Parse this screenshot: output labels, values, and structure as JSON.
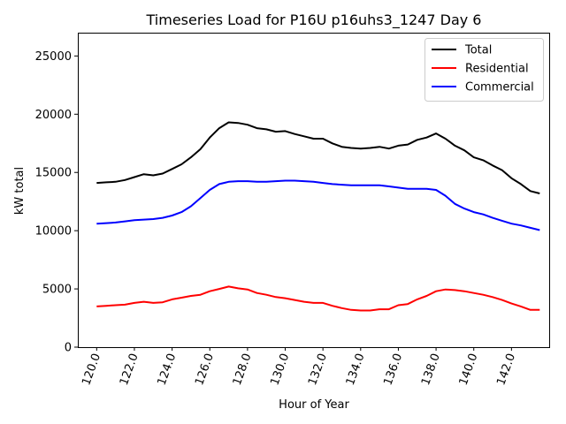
{
  "chart_data": {
    "type": "line",
    "title": "Timeseries Load for P16U p16uhs3_1247  Day 6",
    "xlabel": "Hour of Year",
    "ylabel": "kW total",
    "xlim": [
      119.0,
      144.0
    ],
    "ylim": [
      0,
      27000
    ],
    "xticks": [
      120,
      122,
      124,
      126,
      128,
      130,
      132,
      134,
      136,
      138,
      140,
      142
    ],
    "xtick_labels": [
      "120.0",
      "122.0",
      "124.0",
      "126.0",
      "128.0",
      "130.0",
      "132.0",
      "134.0",
      "136.0",
      "138.0",
      "140.0",
      "142.0"
    ],
    "yticks": [
      0,
      5000,
      10000,
      15000,
      20000,
      25000
    ],
    "ytick_labels": [
      "0",
      "5000",
      "10000",
      "15000",
      "20000",
      "25000"
    ],
    "legend_position": "top-right",
    "x": [
      120.0,
      120.5,
      121.0,
      121.5,
      122.0,
      122.5,
      123.0,
      123.5,
      124.0,
      124.5,
      125.0,
      125.5,
      126.0,
      126.5,
      127.0,
      127.5,
      128.0,
      128.5,
      129.0,
      129.5,
      130.0,
      130.5,
      131.0,
      131.5,
      132.0,
      132.5,
      133.0,
      133.5,
      134.0,
      134.5,
      135.0,
      135.5,
      136.0,
      136.5,
      137.0,
      137.5,
      138.0,
      138.5,
      139.0,
      139.5,
      140.0,
      140.5,
      141.0,
      141.5,
      142.0,
      142.5,
      143.0,
      143.5
    ],
    "series": [
      {
        "name": "Total",
        "color": "#000000",
        "values": [
          14100,
          14150,
          14200,
          14350,
          14600,
          14850,
          14750,
          14900,
          15300,
          15700,
          16300,
          17000,
          18000,
          18800,
          19300,
          19250,
          19100,
          18800,
          18700,
          18500,
          18550,
          18300,
          18100,
          17900,
          17900,
          17500,
          17200,
          17100,
          17050,
          17100,
          17200,
          17050,
          17300,
          17400,
          17800,
          18000,
          18350,
          17900,
          17300,
          16900,
          16300,
          16050,
          15600,
          15200,
          14500,
          14000,
          13400,
          13200
        ]
      },
      {
        "name": "Residential",
        "color": "#ff0000",
        "values": [
          3500,
          3550,
          3600,
          3650,
          3800,
          3900,
          3800,
          3850,
          4100,
          4250,
          4400,
          4500,
          4800,
          5000,
          5200,
          5050,
          4950,
          4650,
          4500,
          4300,
          4200,
          4050,
          3900,
          3800,
          3800,
          3550,
          3350,
          3200,
          3150,
          3150,
          3250,
          3250,
          3600,
          3700,
          4100,
          4400,
          4800,
          4950,
          4900,
          4800,
          4650,
          4500,
          4300,
          4050,
          3750,
          3500,
          3200,
          3200
        ]
      },
      {
        "name": "Commercial",
        "color": "#0000ff",
        "values": [
          10600,
          10650,
          10700,
          10800,
          10900,
          10950,
          11000,
          11100,
          11300,
          11600,
          12100,
          12800,
          13500,
          14000,
          14200,
          14250,
          14250,
          14200,
          14200,
          14250,
          14300,
          14300,
          14250,
          14200,
          14100,
          14000,
          13950,
          13900,
          13900,
          13900,
          13900,
          13800,
          13700,
          13600,
          13600,
          13600,
          13500,
          13000,
          12300,
          11900,
          11600,
          11400,
          11100,
          10850,
          10600,
          10450,
          10250,
          10050
        ]
      }
    ]
  }
}
